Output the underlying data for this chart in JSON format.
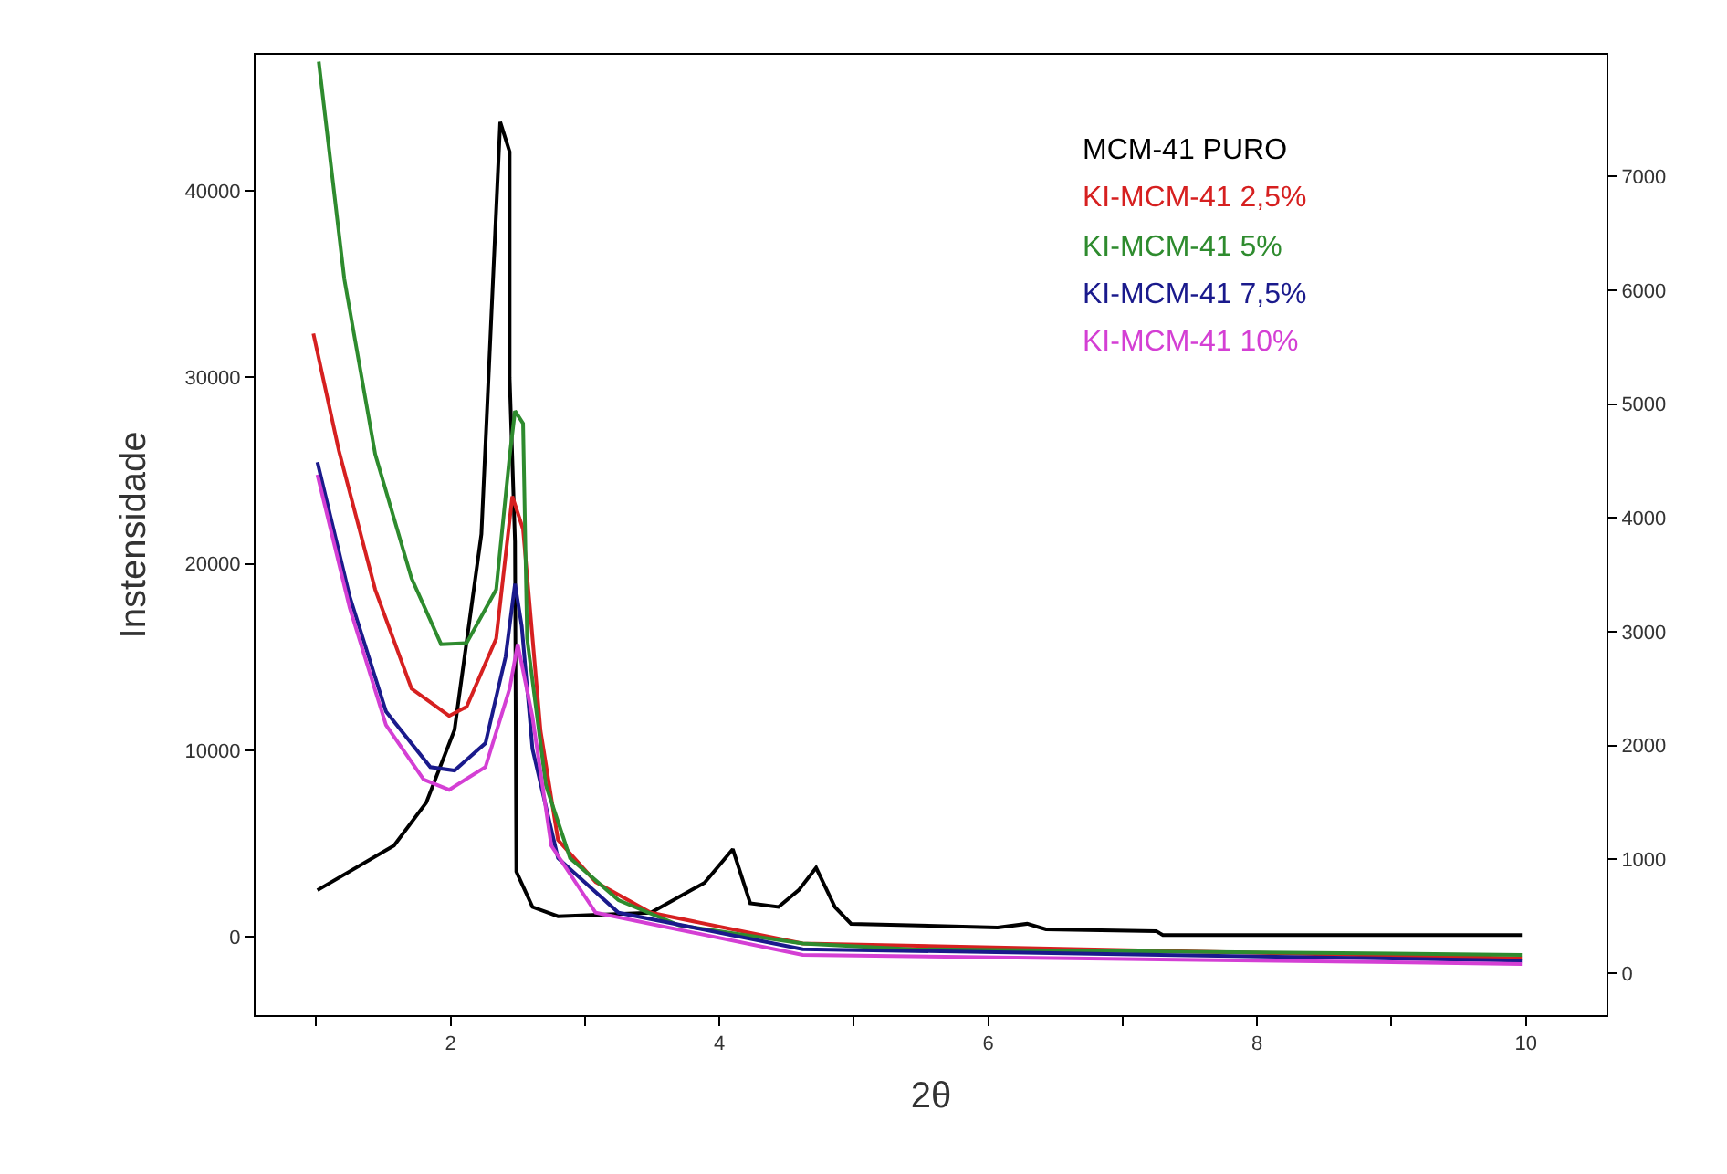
{
  "chart_data": {
    "type": "line",
    "xlabel": "2θ",
    "ylabel": "Instensidade",
    "legend": false,
    "xlim": [
      0.55,
      10.6
    ],
    "xticks": [
      {
        "value": 1,
        "label": null
      },
      2,
      {
        "value": 3,
        "label": null
      },
      4,
      {
        "value": 5,
        "label": null
      },
      6,
      {
        "value": 7,
        "label": null
      },
      8,
      {
        "value": 9,
        "label": null
      },
      10
    ],
    "ylim": [
      -4200,
      47300
    ],
    "yticks": [
      0,
      10000,
      20000,
      30000,
      40000
    ],
    "y2lim": [
      -370,
      8070
    ],
    "y2ticks": [
      0,
      1000,
      2000,
      3000,
      4000,
      5000,
      6000,
      7000
    ],
    "series": [
      {
        "name": "MCM-41 PURO",
        "color": "#000000",
        "x": [
          1.01,
          1.58,
          1.82,
          2.03,
          2.23,
          2.37,
          2.44,
          2.44,
          2.48,
          2.49,
          2.61,
          2.8,
          3.49,
          3.89,
          4.1,
          4.23,
          4.44,
          4.59,
          4.72,
          4.86,
          4.98,
          6.07,
          6.29,
          6.43,
          7.25,
          7.3,
          9.97
        ],
        "values": [
          2500,
          4900,
          7200,
          11100,
          21600,
          43700,
          42100,
          30000,
          21200,
          3500,
          1600,
          1100,
          1300,
          2900,
          4700,
          1800,
          1600,
          2500,
          3700,
          1600,
          700,
          500,
          700,
          400,
          300,
          100,
          100
        ]
      },
      {
        "name": "KI-MCM-41 2,5%",
        "color": "#d62020",
        "axis": "y2",
        "x": [
          0.98,
          1.17,
          1.44,
          1.71,
          1.99,
          2.12,
          2.34,
          2.46,
          2.54,
          2.67,
          2.8,
          3.08,
          3.49,
          4.62,
          9.97
        ],
        "values": [
          5620,
          4590,
          3370,
          2500,
          2260,
          2340,
          2940,
          4190,
          3900,
          2130,
          1170,
          800,
          530,
          260,
          130
        ]
      },
      {
        "name": "KI-MCM-41 5%",
        "color": "#2e8b2e",
        "axis": "y2",
        "x": [
          1.02,
          1.21,
          1.44,
          1.71,
          1.93,
          2.12,
          2.34,
          2.44,
          2.48,
          2.54,
          2.57,
          2.71,
          2.89,
          3.25,
          3.7,
          4.62,
          5.43,
          9.97
        ],
        "values": [
          8010,
          6100,
          4560,
          3470,
          2890,
          2900,
          3370,
          4540,
          4940,
          4830,
          2940,
          1650,
          1010,
          640,
          420,
          260,
          210,
          160
        ]
      },
      {
        "name": "KI-MCM-41 7,5%",
        "color": "#1a1a8c",
        "axis": "y2",
        "x": [
          1.01,
          1.25,
          1.52,
          1.85,
          2.03,
          2.26,
          2.41,
          2.48,
          2.53,
          2.61,
          2.8,
          3.25,
          4.62,
          9.97
        ],
        "values": [
          4490,
          3310,
          2300,
          1810,
          1780,
          2020,
          2780,
          3420,
          3050,
          1970,
          1010,
          530,
          210,
          110
        ]
      },
      {
        "name": "KI-MCM-41 10%",
        "color": "#d43fd4",
        "axis": "y2",
        "x": [
          1.01,
          1.25,
          1.52,
          1.8,
          1.99,
          2.26,
          2.44,
          2.5,
          2.61,
          2.75,
          3.08,
          4.62,
          9.97
        ],
        "values": [
          4380,
          3210,
          2180,
          1700,
          1610,
          1810,
          2500,
          2890,
          2250,
          1120,
          530,
          160,
          80
        ]
      }
    ]
  }
}
